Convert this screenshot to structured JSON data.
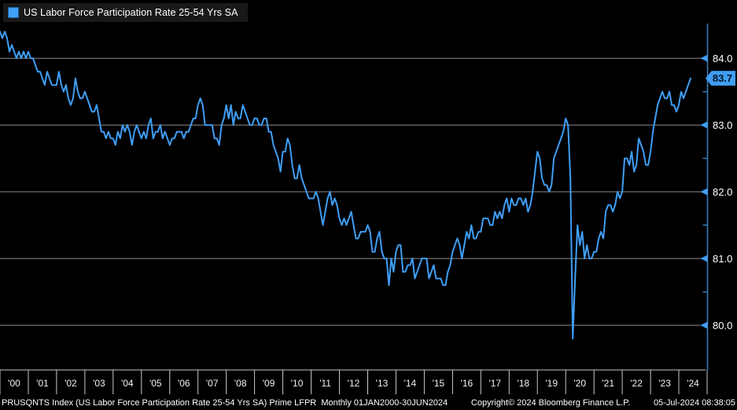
{
  "legend": {
    "label": "US Labor Force Participation Rate 25-54 Yrs SA"
  },
  "colors": {
    "background": "#000000",
    "series_line": "#3f9ef5",
    "grid": "#8c8c8c",
    "x_axis_lines": "#c8c8c8",
    "y_axis_line": "#3e7fc1",
    "tick_arrow": "#3f9ef5",
    "axis_text": "#ffffff",
    "badge_bg": "#3f9ef5",
    "badge_text": "#041420",
    "legend_bg": "#191919"
  },
  "footer": {
    "left": "PRUSQNTS Index (US Labor Force Participation Rate 25-54 Yrs SA) Prime LFPR  Monthly 01JAN2000-30JUN2024",
    "center": "Copyright© 2024 Bloomberg Finance L.P.",
    "right": "05-Jul-2024 08:38:05"
  },
  "chart_data": {
    "type": "line",
    "title": "US Labor Force Participation Rate 25-54 Yrs SA",
    "frequency": "monthly",
    "x_start": "2000-01",
    "x_end": "2024-06",
    "x_tick_labels": [
      "'00",
      "'01",
      "'02",
      "'03",
      "'04",
      "'05",
      "'06",
      "'07",
      "'08",
      "'09",
      "'10",
      "'11",
      "'12",
      "'13",
      "'14",
      "'15",
      "'16",
      "'17",
      "'18",
      "'19",
      "'20",
      "'21",
      "'22",
      "'23",
      "'24"
    ],
    "y_ticks": [
      84.0,
      83.0,
      82.0,
      81.0,
      80.0
    ],
    "y_minor_ticks": [
      83.5,
      82.5,
      81.5,
      80.5
    ],
    "ylim": [
      79.33,
      84.52
    ],
    "grid": "horizontal",
    "legend_position": "top-left",
    "last_value": 83.7,
    "last_value_label": "83.7",
    "series": [
      {
        "name": "US Labor Force Participation Rate 25-54 Yrs SA",
        "color": "#3f9ef5",
        "values": [
          84.4,
          84.3,
          84.4,
          84.3,
          84.1,
          84.2,
          84.1,
          84.0,
          84.1,
          84.0,
          84.1,
          84.0,
          84.1,
          84.0,
          84.0,
          83.9,
          83.8,
          83.8,
          83.7,
          83.6,
          83.8,
          83.7,
          83.6,
          83.6,
          83.6,
          83.8,
          83.6,
          83.5,
          83.6,
          83.4,
          83.3,
          83.4,
          83.7,
          83.5,
          83.4,
          83.4,
          83.5,
          83.4,
          83.3,
          83.2,
          83.2,
          83.3,
          83.1,
          82.9,
          82.9,
          82.8,
          82.9,
          82.8,
          82.8,
          82.7,
          82.9,
          82.8,
          83.0,
          82.9,
          83.0,
          82.9,
          82.7,
          82.9,
          83.0,
          82.9,
          82.8,
          82.9,
          82.8,
          83.0,
          83.1,
          82.8,
          82.9,
          82.9,
          83.0,
          82.8,
          82.9,
          82.8,
          82.7,
          82.8,
          82.8,
          82.9,
          82.9,
          82.9,
          82.8,
          82.9,
          82.9,
          83.0,
          83.1,
          83.1,
          83.3,
          83.4,
          83.3,
          83.0,
          83.0,
          83.0,
          83.0,
          82.8,
          82.8,
          82.7,
          83.0,
          83.1,
          83.3,
          83.1,
          83.3,
          83.0,
          83.2,
          83.1,
          83.1,
          83.3,
          83.2,
          83.1,
          83.0,
          83.0,
          83.1,
          83.1,
          83.0,
          83.0,
          83.1,
          83.1,
          82.9,
          82.9,
          82.7,
          82.6,
          82.5,
          82.3,
          82.6,
          82.6,
          82.8,
          82.7,
          82.4,
          82.2,
          82.2,
          82.4,
          82.2,
          82.1,
          82.0,
          81.9,
          81.9,
          81.9,
          82.0,
          81.9,
          81.7,
          81.5,
          81.7,
          81.9,
          82.0,
          81.8,
          81.9,
          81.8,
          81.6,
          81.5,
          81.6,
          81.5,
          81.6,
          81.7,
          81.5,
          81.3,
          81.3,
          81.4,
          81.4,
          81.4,
          81.5,
          81.4,
          81.1,
          81.1,
          81.3,
          81.4,
          81.1,
          81.0,
          81.0,
          80.6,
          81.0,
          80.8,
          81.1,
          81.2,
          81.2,
          80.8,
          80.8,
          80.9,
          80.9,
          81.0,
          80.7,
          80.8,
          80.9,
          81.0,
          81.0,
          81.0,
          80.7,
          80.8,
          80.9,
          80.7,
          80.7,
          80.7,
          80.6,
          80.6,
          80.8,
          80.9,
          81.1,
          81.2,
          81.3,
          81.2,
          81.0,
          81.2,
          81.4,
          81.3,
          81.5,
          81.3,
          81.3,
          81.4,
          81.4,
          81.6,
          81.6,
          81.6,
          81.5,
          81.5,
          81.7,
          81.6,
          81.7,
          81.6,
          81.8,
          81.9,
          81.7,
          81.9,
          81.8,
          81.8,
          81.9,
          81.9,
          81.8,
          81.9,
          81.7,
          81.8,
          82.0,
          82.3,
          82.6,
          82.5,
          82.2,
          82.1,
          82.1,
          82.0,
          82.1,
          82.5,
          82.6,
          82.7,
          82.8,
          82.9,
          83.1,
          83.0,
          82.2,
          79.8,
          80.7,
          81.5,
          81.2,
          81.4,
          81.0,
          81.2,
          81.0,
          81.0,
          81.1,
          81.1,
          81.3,
          81.4,
          81.3,
          81.7,
          81.8,
          81.8,
          81.7,
          81.8,
          82.0,
          81.9,
          82.0,
          82.5,
          82.5,
          82.4,
          82.6,
          82.3,
          82.4,
          82.8,
          82.7,
          82.6,
          82.4,
          82.4,
          82.6,
          82.9,
          83.1,
          83.3,
          83.4,
          83.5,
          83.4,
          83.4,
          83.5,
          83.3,
          83.3,
          83.2,
          83.3,
          83.5,
          83.4,
          83.5,
          83.6,
          83.7
        ]
      }
    ]
  }
}
